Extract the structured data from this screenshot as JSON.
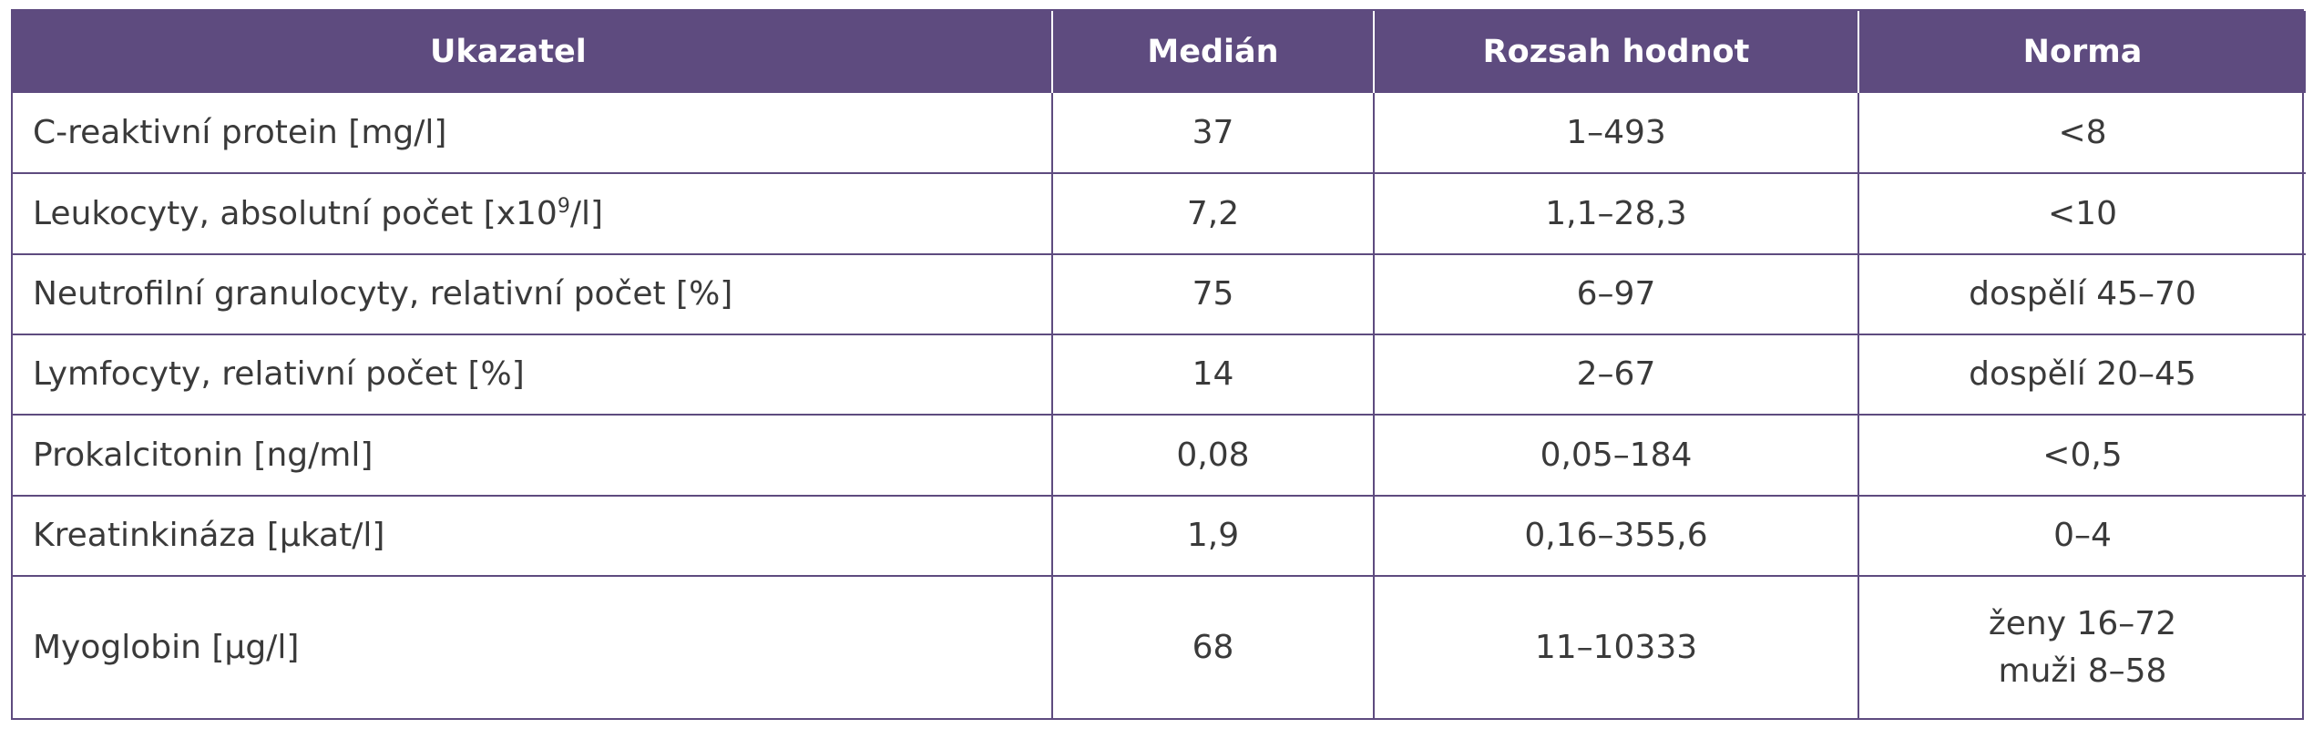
{
  "table": {
    "headers": [
      "Ukazatel",
      "Medián",
      "Rozsah hodnot",
      "Norma"
    ],
    "rows": [
      {
        "indicator": "C-reaktivní protein [mg/l]",
        "median": "37",
        "range": "1–493",
        "norm": [
          "<8"
        ]
      },
      {
        "indicator_prefix": "Leukocyty, absolutní počet [x10",
        "indicator_sup": "9",
        "indicator_suffix": "/l]",
        "median": "7,2",
        "range": "1,1–28,3",
        "norm": [
          "<10"
        ]
      },
      {
        "indicator": "Neutrofilní granulocyty, relativní počet [%]",
        "median": "75",
        "range": "6–97",
        "norm": [
          "dospělí 45–70"
        ]
      },
      {
        "indicator": "Lymfocyty, relativní počet [%]",
        "median": "14",
        "range": "2–67",
        "norm": [
          "dospělí 20–45"
        ]
      },
      {
        "indicator": "Prokalcitonin [ng/ml]",
        "median": "0,08",
        "range": "0,05–184",
        "norm": [
          "<0,5"
        ]
      },
      {
        "indicator": "Kreatinkináza [μkat/l]",
        "median": "1,9",
        "range": "0,16–355,6",
        "norm": [
          "0–4"
        ]
      },
      {
        "indicator": "Myoglobin [μg/l]",
        "median": "68",
        "range": "11–10333",
        "norm": [
          "ženy 16–72",
          "muži 8–58"
        ]
      }
    ]
  },
  "colors": {
    "header_bg": "#5e4b7f",
    "header_text": "#ffffff",
    "border": "#5e4b7f",
    "body_text": "#3a3a3a"
  }
}
